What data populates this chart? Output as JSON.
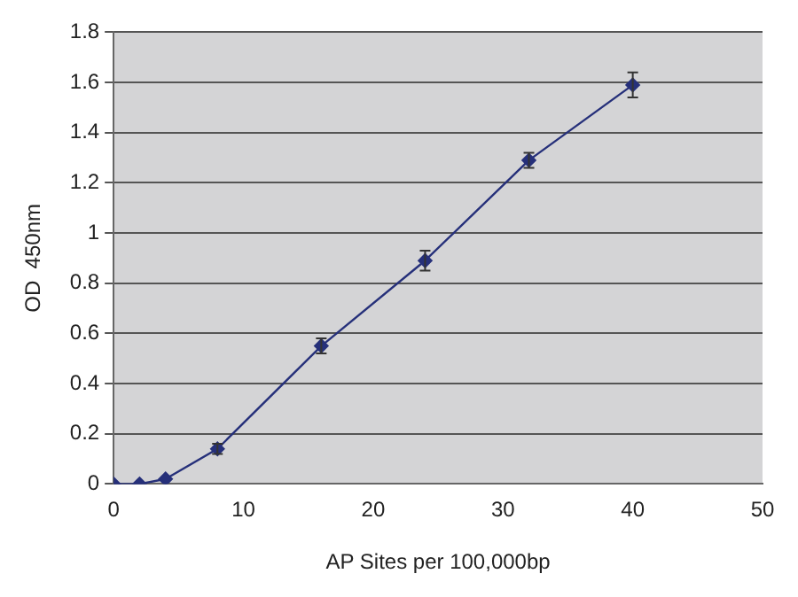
{
  "chart_data": {
    "type": "line",
    "xlabel": "AP Sites per 100,000bp",
    "ylabel": "OD  450nm",
    "x": [
      0,
      2,
      4,
      8,
      16,
      24,
      32,
      40
    ],
    "series": [
      {
        "color": "#26307a",
        "values": [
          0,
          0,
          0.02,
          0.14,
          0.55,
          0.89,
          1.29,
          1.59
        ],
        "errors": [
          null,
          null,
          null,
          0.02,
          0.03,
          0.04,
          0.03,
          0.05
        ]
      }
    ],
    "xlim": [
      0,
      50
    ],
    "xticks": [
      0,
      10,
      20,
      30,
      40,
      50
    ],
    "ylim": [
      0,
      1.8
    ],
    "yticks": [
      0,
      0.2,
      0.4,
      0.6,
      0.8,
      1,
      1.2,
      1.4,
      1.6,
      1.8
    ],
    "grid": "y",
    "legend": false,
    "marker": "diamond",
    "line_style": "solid"
  }
}
